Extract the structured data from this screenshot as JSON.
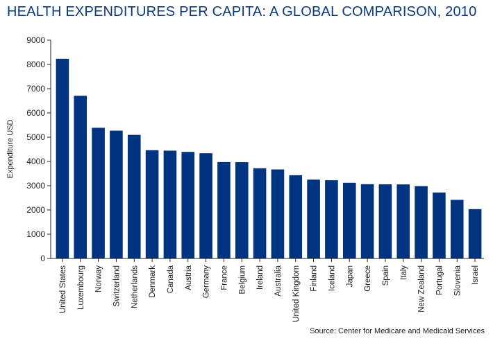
{
  "chart_data": {
    "type": "bar",
    "title": "HEALTH EXPENDITURES PER CAPITA: A GLOBAL COMPARISON, 2010",
    "xlabel": "",
    "ylabel": "Expenditure USD",
    "ylim": [
      0,
      9000
    ],
    "yticks": [
      0,
      1000,
      2000,
      3000,
      4000,
      5000,
      6000,
      7000,
      8000,
      9000
    ],
    "categories": [
      "United States",
      "Luxembourg",
      "Norway",
      "Switzerland",
      "Netherlands",
      "Denmark",
      "Canada",
      "Austria",
      "Germany",
      "France",
      "Belgium",
      "Ireland",
      "Australia",
      "United Kingdom",
      "Finland",
      "Iceland",
      "Japan",
      "Greece",
      "Spain",
      "Italy",
      "New Zealand",
      "Portugal",
      "Slovenia",
      "Israel"
    ],
    "values": [
      8233,
      6709,
      5388,
      5270,
      5096,
      4464,
      4445,
      4395,
      4338,
      3974,
      3969,
      3718,
      3670,
      3433,
      3251,
      3225,
      3120,
      3063,
      3056,
      3053,
      2983,
      2721,
      2417,
      2035
    ],
    "bar_color": "#003380",
    "source": "Source: Center for Medicare and Medicaid Services"
  }
}
